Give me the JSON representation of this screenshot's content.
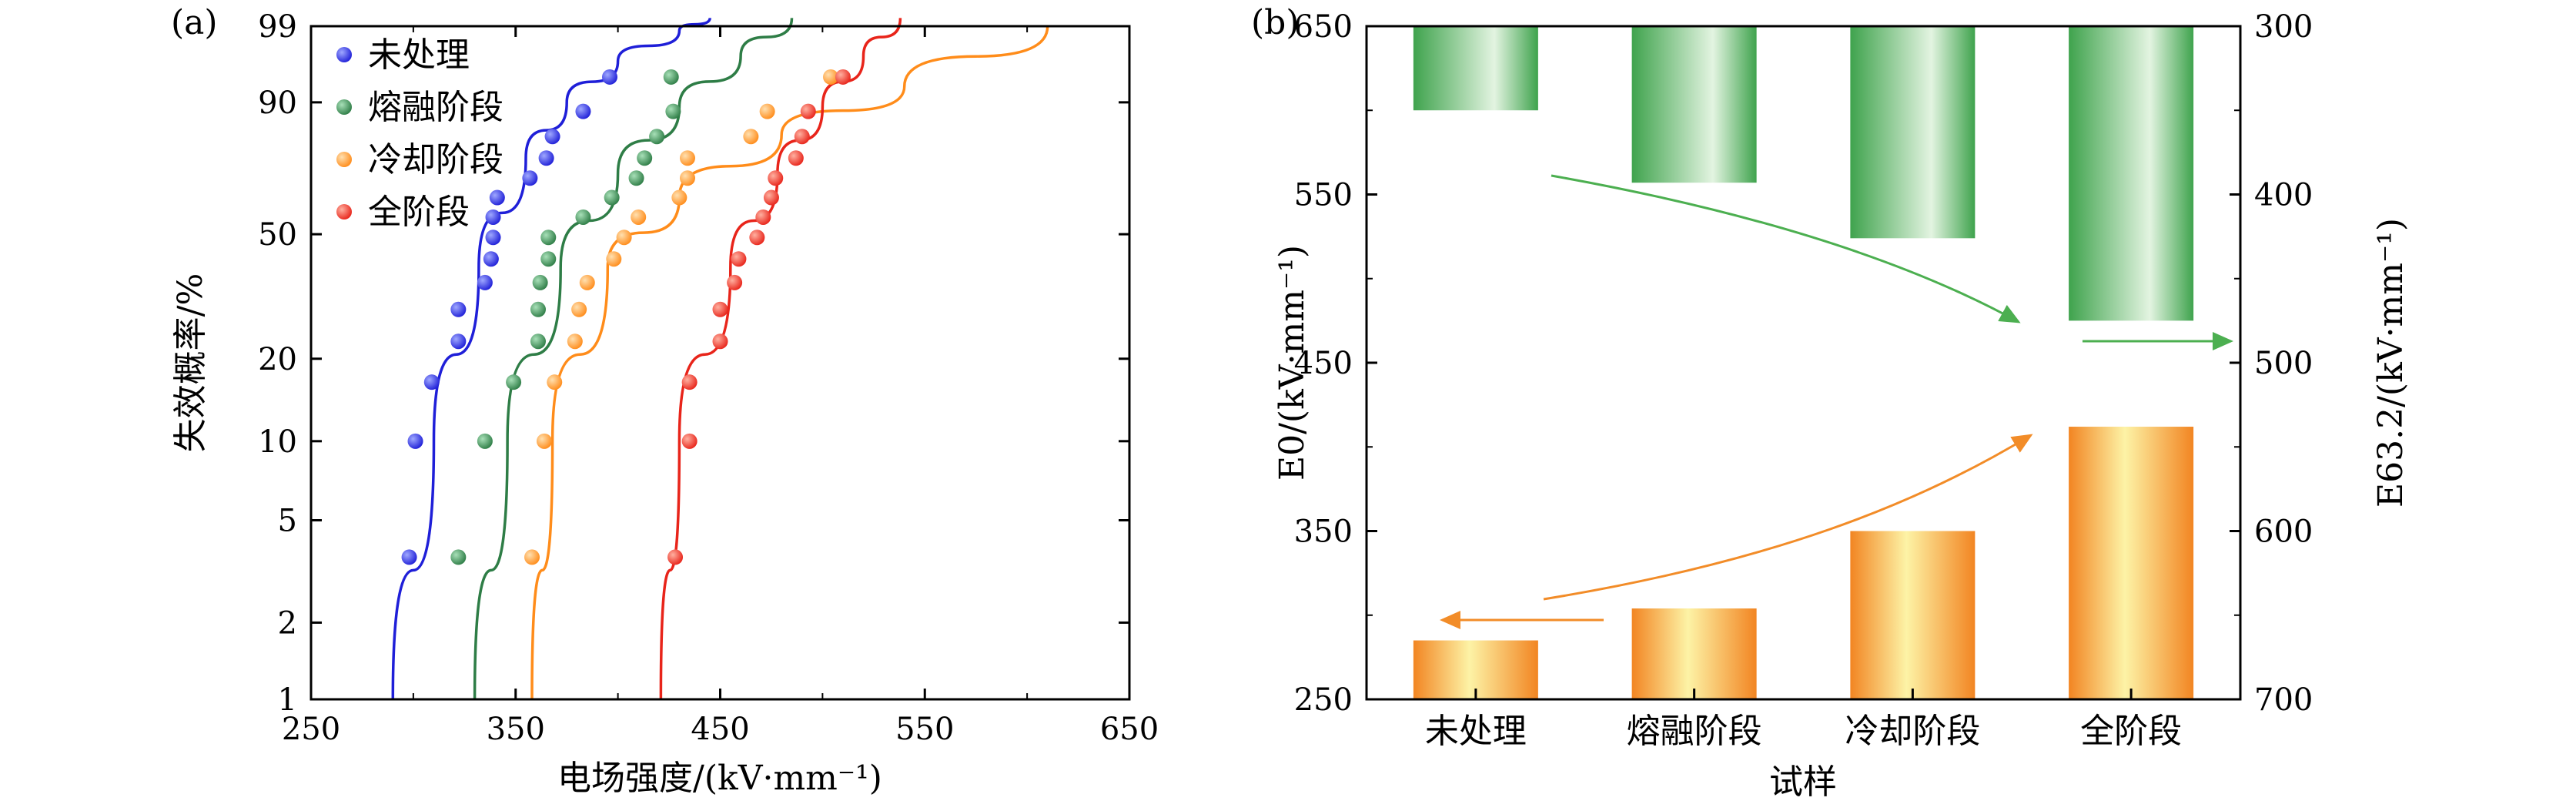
{
  "figure": {
    "panel_a_label": "(a)",
    "panel_b_label": "(b)"
  },
  "chart_data": [
    {
      "type": "scatter",
      "panel": "a",
      "title": "",
      "xlabel": "电场强度/(kV·mm⁻¹)",
      "ylabel": "失效概率/%",
      "xlim": [
        250,
        650
      ],
      "ylim": [
        1,
        99
      ],
      "yscale": "weibull",
      "xticks": [
        250,
        350,
        450,
        550,
        650
      ],
      "yticks": [
        1,
        2,
        5,
        10,
        20,
        50,
        90,
        99
      ],
      "legend_position": "top-left",
      "series": [
        {
          "name": "未处理",
          "color": "#1f1fd8",
          "x": [
            298,
            301,
            309,
            322,
            322,
            335,
            338,
            339,
            339,
            341,
            357,
            365,
            368,
            383,
            396
          ],
          "y": [
            3.6,
            10,
            16.5,
            23,
            29.5,
            36,
            42.5,
            49,
            55.5,
            62,
            68.5,
            75,
            81.5,
            88,
            94.5
          ],
          "fit": [
            [
              290,
              1
            ],
            [
              310,
              10
            ],
            [
              332,
              40
            ],
            [
              355,
              75
            ],
            [
              375,
              90
            ],
            [
              400,
              96.5
            ],
            [
              430,
              98.8
            ],
            [
              445,
              99.3
            ]
          ]
        },
        {
          "name": "熔融阶段",
          "color": "#2e7d46",
          "x": [
            322,
            335,
            349,
            361,
            361,
            362,
            366,
            366,
            383,
            397,
            409,
            413,
            419,
            427,
            426
          ],
          "y": [
            3.6,
            10,
            16.5,
            23,
            29.5,
            36,
            42.5,
            49,
            55.5,
            62,
            68.5,
            75,
            81.5,
            88,
            94.5
          ],
          "fit": [
            [
              330,
              1
            ],
            [
              346,
              10
            ],
            [
              372,
              40
            ],
            [
              400,
              70
            ],
            [
              430,
              89
            ],
            [
              460,
              97
            ],
            [
              485,
              99.3
            ]
          ]
        },
        {
          "name": "冷却阶段",
          "color": "#ff8c1a",
          "x": [
            358,
            364,
            369,
            379,
            381,
            385,
            398,
            403,
            410,
            430,
            434,
            434,
            465,
            473,
            504
          ],
          "y": [
            3.6,
            10,
            16.5,
            23,
            29.5,
            36,
            42.5,
            49,
            55.5,
            62,
            68.5,
            75,
            81.5,
            88,
            94.5
          ],
          "fit": [
            [
              358,
              1
            ],
            [
              368,
              10
            ],
            [
              395,
              40
            ],
            [
              430,
              62
            ],
            [
              480,
              82
            ],
            [
              540,
              93
            ],
            [
              610,
              99
            ]
          ]
        },
        {
          "name": "全阶段",
          "color": "#e8241a",
          "x": [
            428,
            435,
            435,
            450,
            450,
            457,
            459,
            468,
            471,
            475,
            477,
            487,
            490,
            493,
            510
          ],
          "y": [
            3.6,
            10,
            16.5,
            23,
            29.5,
            36,
            42.5,
            49,
            55.5,
            62,
            68.5,
            75,
            81.5,
            88,
            94.5
          ],
          "fit": [
            [
              421,
              1
            ],
            [
              430,
              10
            ],
            [
              455,
              40
            ],
            [
              478,
              70
            ],
            [
              500,
              89
            ],
            [
              520,
              97
            ],
            [
              538,
              99.3
            ]
          ]
        }
      ]
    },
    {
      "type": "bar",
      "panel": "b",
      "title": "",
      "xlabel": "试样",
      "ylabel_left": "E0/(kV·mm⁻¹)",
      "ylabel_right": "E63.2/(kV·mm⁻¹)",
      "categories": [
        "未处理",
        "熔融阶段",
        "冷却阶段",
        "全阶段"
      ],
      "ylim_left": [
        250,
        650
      ],
      "ylim_right": [
        700,
        300
      ],
      "yticks_left": [
        250,
        350,
        450,
        550,
        650
      ],
      "yticks_right": [
        700,
        600,
        500,
        400,
        300
      ],
      "series": [
        {
          "name": "E0",
          "axis": "left",
          "color": "#f28c28",
          "values": [
            285,
            304,
            350,
            412
          ]
        },
        {
          "name": "E63.2",
          "axis": "right",
          "color": "#3fa34d",
          "values": [
            350,
            393,
            426,
            475
          ]
        }
      ],
      "annotations": [
        {
          "type": "arrow",
          "meaning": "E0 trend increasing",
          "color": "#f28c28"
        },
        {
          "type": "arrow",
          "meaning": "E63.2 trend",
          "color": "#3fa34d"
        },
        {
          "type": "arrow",
          "meaning": "orange bars read on left axis",
          "color": "#f28c28"
        },
        {
          "type": "arrow",
          "meaning": "green bars read on right axis",
          "color": "#3fa34d"
        }
      ]
    }
  ]
}
